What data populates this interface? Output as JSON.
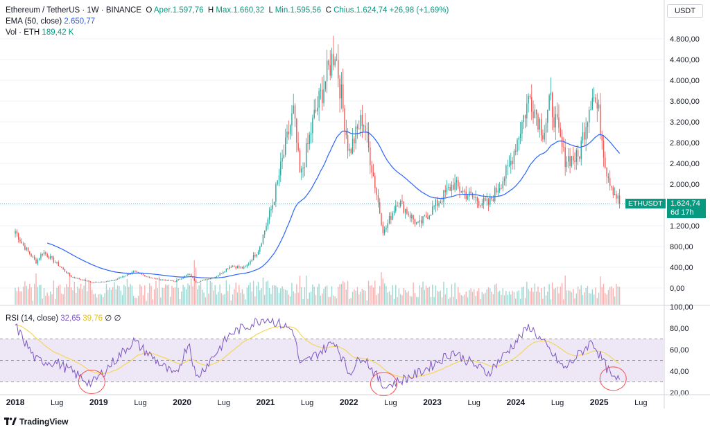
{
  "legend": {
    "symbol": "Ethereum / TetherUS · 1W · BINANCE",
    "o_label": "O",
    "o_val": "Aper.1.597,76",
    "h_label": "H",
    "h_val": "Max.1.660,32",
    "l_label": "L",
    "l_val": "Min.1.595,56",
    "c_label": "C",
    "c_val": "Chius.1.624,74",
    "change": "+26,98 (+1,69%)",
    "ema_label": "EMA (50, close)",
    "ema_val": "2.650,77",
    "vol_label": "Vol · ETH",
    "vol_val": "189,42 K"
  },
  "rsi_legend": {
    "label": "RSI (14, close)",
    "rsi_val": "32,65",
    "ma_val": "39,76",
    "extra": "∅  ∅"
  },
  "price_scale": {
    "unit": "USDT"
  },
  "price_tag": {
    "symbol": "ETHUSDT",
    "price": "1.624,74",
    "countdown": "6d 17h"
  },
  "footer": {
    "brand": "TradingView",
    "logo": "tradingview-logo-icon"
  },
  "colors": {
    "up": "#26a69a",
    "down": "#ef5350",
    "ema": "#2962ff",
    "rsi": "#7e57c2",
    "rsi_ma": "#f5d75c",
    "band": "#ede7f6"
  },
  "chart_data": [
    {
      "type": "candlestick",
      "title": "Ethereum / TetherUS · 1W · BINANCE",
      "ylabel": "USDT",
      "ylim": [
        -100,
        5100
      ],
      "y_ticks": [
        "4.800,00",
        "4.400,00",
        "4.000,00",
        "3.600,00",
        "3.200,00",
        "2.800,00",
        "2.400,00",
        "2.000,00",
        "1.200,00",
        "800,00",
        "400,00",
        "0,00"
      ],
      "x_ticks": [
        "2018",
        "Lug",
        "2019",
        "Lug",
        "2020",
        "Lug",
        "2021",
        "Lug",
        "2022",
        "Lug",
        "2023",
        "Lug",
        "2024",
        "Lug",
        "2025",
        "Lug"
      ],
      "close_anchors": [
        [
          "2018-01",
          1100
        ],
        [
          "2018-02",
          850
        ],
        [
          "2018-04",
          500
        ],
        [
          "2018-05",
          700
        ],
        [
          "2018-07",
          470
        ],
        [
          "2018-09",
          220
        ],
        [
          "2018-12",
          110
        ],
        [
          "2019-03",
          140
        ],
        [
          "2019-06",
          310
        ],
        [
          "2019-09",
          180
        ],
        [
          "2019-12",
          130
        ],
        [
          "2020-02",
          270
        ],
        [
          "2020-03",
          110
        ],
        [
          "2020-06",
          230
        ],
        [
          "2020-08",
          430
        ],
        [
          "2020-10",
          380
        ],
        [
          "2020-12",
          740
        ],
        [
          "2021-02",
          1600
        ],
        [
          "2021-05",
          3400
        ],
        [
          "2021-06",
          2100
        ],
        [
          "2021-08",
          3300
        ],
        [
          "2021-11",
          4600
        ],
        [
          "2022-01",
          2600
        ],
        [
          "2022-03",
          3300
        ],
        [
          "2022-06",
          1050
        ],
        [
          "2022-08",
          1700
        ],
        [
          "2022-11",
          1200
        ],
        [
          "2023-04",
          2000
        ],
        [
          "2023-06",
          1800
        ],
        [
          "2023-09",
          1600
        ],
        [
          "2023-12",
          2300
        ],
        [
          "2024-03",
          3700
        ],
        [
          "2024-05",
          3000
        ],
        [
          "2024-06",
          3600
        ],
        [
          "2024-08",
          2500
        ],
        [
          "2024-10",
          2500
        ],
        [
          "2024-12",
          3800
        ],
        [
          "2025-01",
          3300
        ],
        [
          "2025-02",
          2300
        ],
        [
          "2025-03",
          1900
        ],
        [
          "2025-04",
          1624.74
        ]
      ],
      "ema50_last": 2650.77,
      "volume_last": "189,42 K"
    },
    {
      "type": "line",
      "title": "RSI (14, close)",
      "ylim": [
        20,
        100
      ],
      "y_ticks": [
        "100,00",
        "80,00",
        "60,00",
        "40,00",
        "20,00"
      ],
      "bands": [
        30,
        50,
        70
      ],
      "rsi_anchors": [
        [
          "2018-01",
          82
        ],
        [
          "2018-04",
          50
        ],
        [
          "2018-07",
          48
        ],
        [
          "2018-12",
          28
        ],
        [
          "2019-06",
          68
        ],
        [
          "2019-12",
          35
        ],
        [
          "2020-02",
          68
        ],
        [
          "2020-03",
          33
        ],
        [
          "2020-08",
          75
        ],
        [
          "2021-01",
          90
        ],
        [
          "2021-05",
          78
        ],
        [
          "2021-06",
          45
        ],
        [
          "2021-11",
          68
        ],
        [
          "2022-01",
          38
        ],
        [
          "2022-03",
          55
        ],
        [
          "2022-06",
          25
        ],
        [
          "2022-11",
          38
        ],
        [
          "2023-04",
          58
        ],
        [
          "2023-09",
          38
        ],
        [
          "2024-03",
          82
        ],
        [
          "2024-08",
          42
        ],
        [
          "2024-12",
          68
        ],
        [
          "2025-03",
          32
        ]
      ],
      "rsi_last": 32.65,
      "rsi_ma_last": 39.76
    }
  ]
}
